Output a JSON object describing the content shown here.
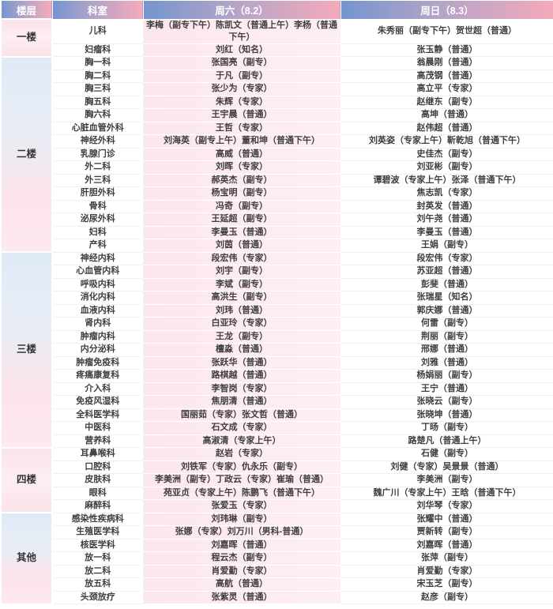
{
  "header": {
    "floor_label": "楼层",
    "department_label": "科室",
    "saturday_label": "周六（8.2）",
    "sunday_label": "周日（8.3）"
  },
  "colors": {
    "header_gradient_blue": "#7495cf",
    "header_gradient_pink": "#f5aabb",
    "saturday_column_bg": "#fce8ed",
    "floor_pink_tint": "#fbe2e9",
    "floor_blue_tint": "#dfeaf7",
    "body_text": "#3e3e3e"
  },
  "floors": [
    {
      "name": "一楼",
      "tint": "pink",
      "rows": [
        {
          "dept": "儿科",
          "sat": "李梅（副专下午）陈凯文（普通上午）李杨（普通下午）",
          "sun": "朱秀丽（副专下午）贺世超（普通）"
        },
        {
          "dept": "妇瘤科",
          "sat": "刘红（知名）",
          "sun": "张玉静（普通）"
        }
      ]
    },
    {
      "name": "二楼",
      "tint": "bluepink",
      "rows": [
        {
          "dept": "胸一科",
          "sat": "张国亮（副专）",
          "sun": "翁晨刚（普通）"
        },
        {
          "dept": "胸二科",
          "sat": "于凡（副专）",
          "sun": "高茂钢（普通）"
        },
        {
          "dept": "胸三科",
          "sat": "张少为（专家）",
          "sun": "高立平（专家）"
        },
        {
          "dept": "胸五科",
          "sat": "朱辉（专家）",
          "sun": "赵继东（副专）"
        },
        {
          "dept": "胸六科",
          "sat": "王宇晨（普通）",
          "sun": "高坤（普通）"
        },
        {
          "dept": "心脏血管外科",
          "sat": "王哲（专家）",
          "sun": "赵伟超（普通）"
        },
        {
          "dept": "神经外科",
          "sat": "刘海英（副专上午）董和坤（普通下午）",
          "sun": "刘英姿（专家上午）靳乾旭（普通下午）"
        },
        {
          "dept": "乳腺门诊",
          "sat": "高威（普通）",
          "sun": "史佳杰（副专）"
        },
        {
          "dept": "外二科",
          "sat": "刘晖（专家）",
          "sun": "刘亚彬（副专）"
        },
        {
          "dept": "外三科",
          "sat": "郝英杰（副专）",
          "sun": "谭碧波（专家上午）张泽（普通下午）"
        },
        {
          "dept": "肝胆外科",
          "sat": "杨宝明（副专）",
          "sun": "焦志凯（专家）"
        },
        {
          "dept": "骨科",
          "sat": "冯奇（副专）",
          "sun": "封英发（普通）"
        },
        {
          "dept": "泌尿外科",
          "sat": "王延超（副专）",
          "sun": "刘午尧（普通）"
        },
        {
          "dept": "妇科",
          "sat": "李曼玉（普通）",
          "sun": "李曼玉（普通）"
        },
        {
          "dept": "产科",
          "sat": "刘茵（普通）",
          "sun": "王娟（副专）"
        }
      ]
    },
    {
      "name": "三楼",
      "tint": "bluepink",
      "rows": [
        {
          "dept": "神经内科",
          "sat": "段宏伟（专家）",
          "sun": "段宏伟（专家）"
        },
        {
          "dept": "心血管内科",
          "sat": "刘宇（副专）",
          "sun": "苏亚超（普通）"
        },
        {
          "dept": "呼吸内科",
          "sat": "李斌（副专）",
          "sun": "彭斐（普通）"
        },
        {
          "dept": "消化内科",
          "sat": "高洪生（副专）",
          "sun": "张瑞星（知名）"
        },
        {
          "dept": "血液内科",
          "sat": "刘玮（普通）",
          "sun": "郭庆娜（普通）"
        },
        {
          "dept": "肾内科",
          "sat": "白亚玲（专家）",
          "sun": "何雷（副专）"
        },
        {
          "dept": "肿瘤内科",
          "sat": "王龙（副专）",
          "sun": "荆丽（副专）"
        },
        {
          "dept": "内分泌科",
          "sat": "檀淼（普通）",
          "sun": "邢娜（普通）"
        },
        {
          "dept": "肿瘤免疫科",
          "sat": "张跃华（普通）",
          "sun": "刘雅（普通）"
        },
        {
          "dept": "疼痛康复科",
          "sat": "路棋越（普通）",
          "sun": "杨娟丽（副专）"
        },
        {
          "dept": "介入科",
          "sat": "李智岗（专家）",
          "sun": "王宁（普通）"
        },
        {
          "dept": "免疫风湿科",
          "sat": "焦朋清（普通）",
          "sun": "张晓云（副专）"
        },
        {
          "dept": "全科医学科",
          "sat": "国丽茹（专家）张文哲（普通）",
          "sun": "张晓坤（普通）"
        },
        {
          "dept": "中医科",
          "sat": "石文成（专家）",
          "sun": "丁旸（副专）"
        },
        {
          "dept": "营养科",
          "sat": "高淑清（专家上午）",
          "sun": "路楚凡（普通上午）"
        }
      ]
    },
    {
      "name": "四楼",
      "tint": "pink",
      "rows": [
        {
          "dept": "耳鼻喉科",
          "sat": "赵岩（专家）",
          "sun": "石健（副专）"
        },
        {
          "dept": "口腔科",
          "sat": "刘铁军（专家）仇永乐（副专）",
          "sun": "刘健（专家）吴景景（普通）"
        },
        {
          "dept": "皮肤科",
          "sat": "李美洲（副专）丁政云（专家）崔瑜（普通）",
          "sun": "李美洲（副专）"
        },
        {
          "dept": "眼科",
          "sat": "苑亚贞（专家上午）陈鹏飞（普通下午）",
          "sun": "魏广川（专家上午）王晗（普通下午）"
        },
        {
          "dept": "麻醉科",
          "sat": "张爱玉（专家）",
          "sun": "刘华琴（专家）"
        }
      ]
    },
    {
      "name": "其他",
      "tint": "bluepink",
      "rows": [
        {
          "dept": "感染性疾病科",
          "sat": "刘玮琳（副专）",
          "sun": "张耀中（普通）"
        },
        {
          "dept": "生殖医学科",
          "sat": "张娜（专家）刘万川（男科-普通）",
          "sun": "贾新转（副专）"
        },
        {
          "dept": "核医学科",
          "sat": "刘嘉晖（普通）",
          "sun": "刘嘉晖（普通）"
        },
        {
          "dept": "放一科",
          "sat": "程云杰（副专）",
          "sun": "张萍（副专）"
        },
        {
          "dept": "放二科",
          "sat": "肖爱勤（专家）",
          "sun": "肖爱勤（专家）"
        },
        {
          "dept": "放五科",
          "sat": "高航（普通）",
          "sun": "宋玉芝（副专）"
        },
        {
          "dept": "头颈放疗",
          "sat": "张紫灵（普通）",
          "sun": "赵彦（副专）"
        }
      ]
    }
  ]
}
